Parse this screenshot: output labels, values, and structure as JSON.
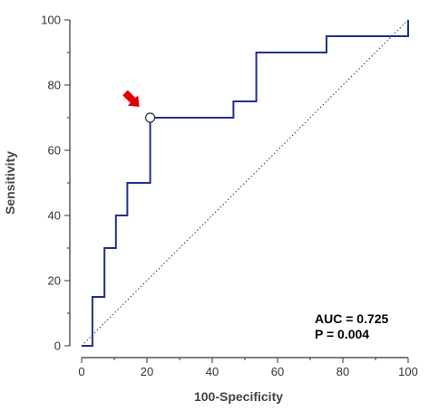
{
  "chart_data": {
    "type": "line",
    "xlabel": "100-Specificity",
    "ylabel": "Sensitivity",
    "xlim": [
      0,
      100
    ],
    "ylim": [
      0,
      100
    ],
    "xticks": [
      0,
      20,
      40,
      60,
      80,
      100
    ],
    "yticks": [
      0,
      20,
      40,
      60,
      80,
      100
    ],
    "grid": false,
    "series": [
      {
        "type": "step",
        "color": "#1f2f8f",
        "points": [
          [
            0,
            0
          ],
          [
            3.3,
            0
          ],
          [
            3.3,
            15
          ],
          [
            7,
            15
          ],
          [
            7,
            30
          ],
          [
            10.5,
            30
          ],
          [
            10.5,
            40
          ],
          [
            14,
            40
          ],
          [
            14,
            50
          ],
          [
            21,
            50
          ],
          [
            21,
            70
          ],
          [
            46.5,
            70
          ],
          [
            46.5,
            75
          ],
          [
            53.5,
            75
          ],
          [
            53.5,
            90
          ],
          [
            75,
            90
          ],
          [
            75,
            95
          ],
          [
            100,
            95
          ],
          [
            100,
            100
          ]
        ]
      },
      {
        "type": "reference-diagonal",
        "style": "dotted",
        "color": "#333333",
        "points": [
          [
            0,
            0
          ],
          [
            100,
            100
          ]
        ]
      }
    ],
    "optimal_point": {
      "x": 21,
      "y": 70
    },
    "pointer_arrow_color": "#e00000",
    "annotations": [
      "AUC = 0.725",
      "P = 0.004"
    ]
  }
}
